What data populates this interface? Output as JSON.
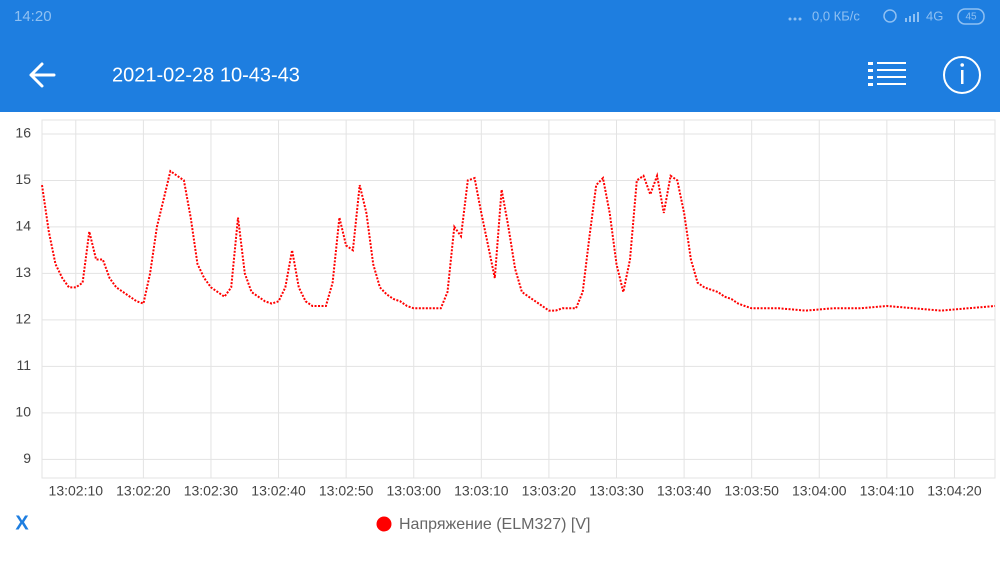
{
  "status_bar": {
    "time": "14:20",
    "speed": "0,0 КБ/с",
    "network": "4G",
    "battery": "45"
  },
  "app_bar": {
    "title": "2021-02-28 10-43-43"
  },
  "x_button": "X",
  "chart_data": {
    "type": "line",
    "x": [
      "13:02:05",
      "13:02:06",
      "13:02:07",
      "13:02:08",
      "13:02:09",
      "13:02:10",
      "13:02:11",
      "13:02:12",
      "13:02:13",
      "13:02:14",
      "13:02:15",
      "13:02:16",
      "13:02:17",
      "13:02:18",
      "13:02:19",
      "13:02:20",
      "13:02:21",
      "13:02:22",
      "13:02:23",
      "13:02:24",
      "13:02:25",
      "13:02:26",
      "13:02:27",
      "13:02:28",
      "13:02:29",
      "13:02:30",
      "13:02:31",
      "13:02:32",
      "13:02:33",
      "13:02:34",
      "13:02:35",
      "13:02:36",
      "13:02:37",
      "13:02:38",
      "13:02:39",
      "13:02:40",
      "13:02:41",
      "13:02:42",
      "13:02:43",
      "13:02:44",
      "13:02:45",
      "13:02:46",
      "13:02:47",
      "13:02:48",
      "13:02:49",
      "13:02:50",
      "13:02:51",
      "13:02:52",
      "13:02:53",
      "13:02:54",
      "13:02:55",
      "13:02:56",
      "13:02:57",
      "13:02:58",
      "13:02:59",
      "13:03:00",
      "13:03:01",
      "13:03:02",
      "13:03:03",
      "13:03:04",
      "13:03:05",
      "13:03:06",
      "13:03:07",
      "13:03:08",
      "13:03:09",
      "13:03:10",
      "13:03:11",
      "13:03:12",
      "13:03:13",
      "13:03:14",
      "13:03:15",
      "13:03:16",
      "13:03:17",
      "13:03:18",
      "13:03:19",
      "13:03:20",
      "13:03:21",
      "13:03:22",
      "13:03:23",
      "13:03:24",
      "13:03:25",
      "13:03:26",
      "13:03:27",
      "13:03:28",
      "13:03:29",
      "13:03:30",
      "13:03:31",
      "13:03:32",
      "13:03:33",
      "13:03:34",
      "13:03:35",
      "13:03:36",
      "13:03:37",
      "13:03:38",
      "13:03:39",
      "13:03:40",
      "13:03:41",
      "13:03:42",
      "13:03:43",
      "13:03:44",
      "13:03:45",
      "13:03:46",
      "13:03:47",
      "13:03:48",
      "13:03:49",
      "13:03:50",
      "13:03:54",
      "13:03:58",
      "13:04:02",
      "13:04:06",
      "13:04:10",
      "13:04:14",
      "13:04:18",
      "13:04:22",
      "13:04:26"
    ],
    "series": [
      {
        "name": "Напряжение (ELM327) [V]",
        "color": "#ff0000",
        "values": [
          14.9,
          13.9,
          13.2,
          12.9,
          12.7,
          12.7,
          12.8,
          13.9,
          13.3,
          13.3,
          12.9,
          12.7,
          12.6,
          12.5,
          12.4,
          12.35,
          13.0,
          14.0,
          14.6,
          15.2,
          15.1,
          15.0,
          14.2,
          13.2,
          12.9,
          12.7,
          12.6,
          12.5,
          12.7,
          14.2,
          13.0,
          12.6,
          12.5,
          12.4,
          12.35,
          12.4,
          12.7,
          13.5,
          12.7,
          12.4,
          12.3,
          12.3,
          12.3,
          12.8,
          14.2,
          13.6,
          13.5,
          14.9,
          14.3,
          13.2,
          12.7,
          12.55,
          12.45,
          12.4,
          12.3,
          12.25,
          12.25,
          12.25,
          12.25,
          12.25,
          12.6,
          14.0,
          13.8,
          15.0,
          15.05,
          14.3,
          13.6,
          12.9,
          14.8,
          14.0,
          13.1,
          12.6,
          12.5,
          12.4,
          12.3,
          12.2,
          12.2,
          12.25,
          12.25,
          12.25,
          12.6,
          13.8,
          14.9,
          15.05,
          14.3,
          13.2,
          12.6,
          13.3,
          15.0,
          15.1,
          14.7,
          15.1,
          14.3,
          15.1,
          15.0,
          14.3,
          13.3,
          12.8,
          12.7,
          12.65,
          12.6,
          12.5,
          12.45,
          12.35,
          12.3,
          12.25,
          12.25,
          12.2,
          12.25,
          12.25,
          12.3,
          12.25,
          12.2,
          12.25,
          12.3
        ]
      }
    ],
    "xlim": [
      "13:02:05",
      "13:04:26"
    ],
    "xticks": [
      "13:02:10",
      "13:02:20",
      "13:02:30",
      "13:02:40",
      "13:02:50",
      "13:03:00",
      "13:03:10",
      "13:03:20",
      "13:03:30",
      "13:03:40",
      "13:03:50",
      "13:04:00",
      "13:04:10",
      "13:04:20"
    ],
    "ylim": [
      8.6,
      16.3
    ],
    "yticks": [
      9,
      10,
      11,
      12,
      13,
      14,
      15,
      16
    ],
    "grid": true
  }
}
